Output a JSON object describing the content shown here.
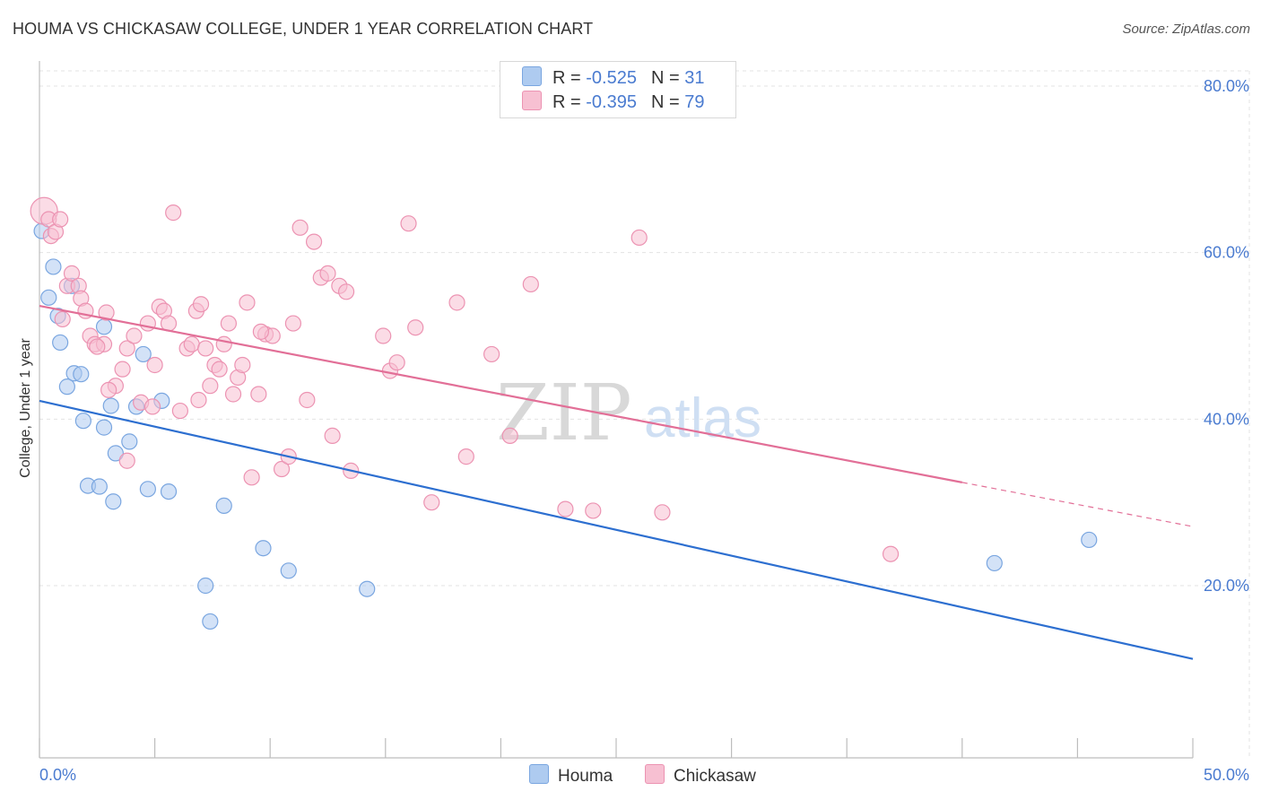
{
  "header": {
    "title": "HOUMA VS CHICKASAW COLLEGE, UNDER 1 YEAR CORRELATION CHART",
    "source": "Source: ZipAtlas.com"
  },
  "legend": {
    "rows": [
      {
        "r_label": "R =",
        "r_value": "-0.525",
        "n_label": "N =",
        "n_value": "31"
      },
      {
        "r_label": "R =",
        "r_value": "-0.395",
        "n_label": "N =",
        "n_value": "79"
      }
    ],
    "series_names": [
      "Houma",
      "Chickasaw"
    ]
  },
  "watermark": {
    "zip": "ZIP",
    "atlas": "atlas"
  },
  "colors": {
    "houma_fill": "#aecbf0",
    "houma_stroke": "#7aa6e0",
    "houma_line": "#2d6fd0",
    "chickasaw_fill": "#f7c0d2",
    "chickasaw_stroke": "#ec93b2",
    "chickasaw_line": "#e26f97",
    "tick_text": "#4a7bd0",
    "grid": "#e3e3e3"
  },
  "chart_data": {
    "type": "scatter",
    "title": "HOUMA VS CHICKASAW COLLEGE, UNDER 1 YEAR CORRELATION CHART",
    "xlabel": "",
    "ylabel": "College, Under 1 year",
    "xlim": [
      0,
      50
    ],
    "ylim": [
      0,
      82
    ],
    "x_tick_labels": [
      "0.0%",
      "50.0%"
    ],
    "y_ticks": [
      20,
      40,
      60,
      80
    ],
    "y_tick_labels": [
      "20.0%",
      "40.0%",
      "60.0%",
      "80.0%"
    ],
    "grid": true,
    "series": [
      {
        "name": "Houma",
        "r": -0.525,
        "n": 31,
        "trend": {
          "x0": 0,
          "y0": 42.2,
          "x1": 50,
          "y1": 11.2
        },
        "points": [
          [
            0.1,
            62.6
          ],
          [
            0.6,
            58.3
          ],
          [
            0.4,
            54.6
          ],
          [
            0.8,
            52.4
          ],
          [
            1.4,
            56.0
          ],
          [
            0.9,
            49.2
          ],
          [
            1.5,
            45.5
          ],
          [
            1.8,
            45.4
          ],
          [
            1.2,
            43.9
          ],
          [
            2.8,
            51.1
          ],
          [
            4.5,
            47.8
          ],
          [
            1.9,
            39.8
          ],
          [
            2.8,
            39.0
          ],
          [
            3.1,
            41.6
          ],
          [
            4.2,
            41.5
          ],
          [
            5.3,
            42.2
          ],
          [
            3.9,
            37.3
          ],
          [
            3.3,
            35.9
          ],
          [
            2.1,
            32.0
          ],
          [
            2.6,
            31.9
          ],
          [
            3.2,
            30.1
          ],
          [
            4.7,
            31.6
          ],
          [
            5.6,
            31.3
          ],
          [
            8.0,
            29.6
          ],
          [
            9.7,
            24.5
          ],
          [
            10.8,
            21.8
          ],
          [
            7.2,
            20.0
          ],
          [
            14.2,
            19.6
          ],
          [
            7.4,
            15.7
          ],
          [
            41.4,
            22.7
          ],
          [
            45.5,
            25.5
          ]
        ]
      },
      {
        "name": "Chickasaw",
        "r": -0.395,
        "n": 79,
        "trend": {
          "x0": 0,
          "y0": 53.6,
          "x1": 40,
          "y1": 32.4
        },
        "trend_dashed": {
          "x0": 40,
          "y0": 32.4,
          "x1": 50,
          "y1": 27.1
        },
        "points": [
          [
            0.2,
            65.0
          ],
          [
            0.4,
            64.0
          ],
          [
            0.5,
            62.0
          ],
          [
            0.7,
            62.5
          ],
          [
            0.9,
            64.0
          ],
          [
            1.2,
            56.0
          ],
          [
            1.4,
            57.5
          ],
          [
            1.7,
            56.0
          ],
          [
            1.8,
            54.5
          ],
          [
            2.0,
            53.0
          ],
          [
            2.2,
            50.0
          ],
          [
            2.4,
            49.0
          ],
          [
            2.8,
            49.0
          ],
          [
            2.9,
            52.8
          ],
          [
            3.3,
            44.0
          ],
          [
            3.6,
            46.0
          ],
          [
            3.8,
            48.5
          ],
          [
            4.1,
            50.0
          ],
          [
            4.4,
            42.0
          ],
          [
            4.7,
            51.5
          ],
          [
            5.0,
            46.5
          ],
          [
            5.2,
            53.5
          ],
          [
            5.4,
            53.0
          ],
          [
            5.6,
            51.5
          ],
          [
            5.8,
            64.8
          ],
          [
            6.1,
            41.0
          ],
          [
            6.4,
            48.5
          ],
          [
            6.6,
            49.0
          ],
          [
            6.8,
            53.0
          ],
          [
            7.0,
            53.8
          ],
          [
            7.2,
            48.5
          ],
          [
            7.4,
            44.0
          ],
          [
            7.6,
            46.5
          ],
          [
            7.8,
            46.0
          ],
          [
            8.0,
            49.0
          ],
          [
            8.2,
            51.5
          ],
          [
            8.4,
            43.0
          ],
          [
            8.6,
            45.0
          ],
          [
            8.8,
            46.5
          ],
          [
            9.0,
            54.0
          ],
          [
            9.2,
            33.0
          ],
          [
            9.5,
            43.0
          ],
          [
            9.8,
            50.2
          ],
          [
            10.1,
            50.0
          ],
          [
            10.5,
            34.0
          ],
          [
            10.8,
            35.5
          ],
          [
            11.0,
            51.5
          ],
          [
            11.3,
            63.0
          ],
          [
            11.6,
            42.3
          ],
          [
            11.9,
            61.3
          ],
          [
            12.2,
            57.0
          ],
          [
            12.5,
            57.5
          ],
          [
            12.7,
            38.0
          ],
          [
            13.0,
            56.0
          ],
          [
            13.3,
            55.3
          ],
          [
            13.5,
            33.8
          ],
          [
            14.9,
            50.0
          ],
          [
            15.2,
            45.8
          ],
          [
            15.5,
            46.8
          ],
          [
            16.0,
            63.5
          ],
          [
            16.3,
            51.0
          ],
          [
            17.0,
            30.0
          ],
          [
            18.1,
            54.0
          ],
          [
            18.5,
            35.5
          ],
          [
            19.6,
            47.8
          ],
          [
            20.4,
            38.0
          ],
          [
            21.3,
            56.2
          ],
          [
            22.8,
            29.2
          ],
          [
            24.0,
            29.0
          ],
          [
            26.0,
            61.8
          ],
          [
            27.0,
            28.8
          ],
          [
            36.9,
            23.8
          ],
          [
            1.0,
            52.0
          ],
          [
            3.0,
            43.5
          ],
          [
            4.9,
            41.5
          ],
          [
            6.9,
            42.3
          ],
          [
            2.5,
            48.7
          ],
          [
            9.6,
            50.5
          ],
          [
            3.8,
            35.0
          ]
        ]
      }
    ]
  }
}
